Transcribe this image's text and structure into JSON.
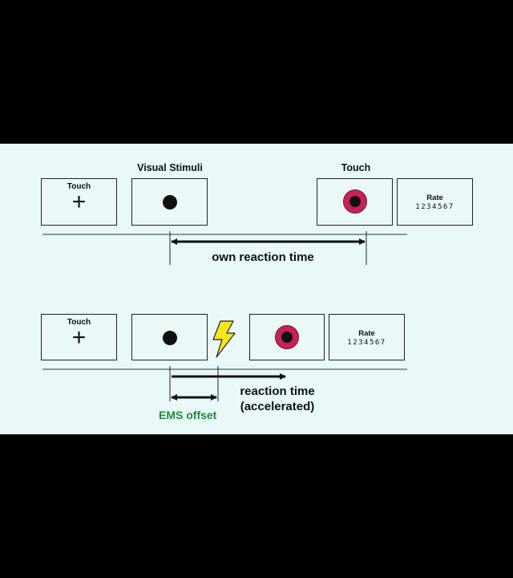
{
  "headers": {
    "visual_stimuli": "Visual Stimuli",
    "touch": "Touch"
  },
  "top_row": {
    "frame1": {
      "label": "Touch",
      "symbol": "+"
    },
    "frame4": {
      "label": "Rate",
      "scale": "1234567"
    }
  },
  "bottom_row": {
    "frame1": {
      "label": "Touch",
      "symbol": "+"
    },
    "frame5": {
      "label": "Rate",
      "scale": "1234567"
    }
  },
  "annotations": {
    "own_reaction_time": "own reaction time",
    "reaction_time_line1": "reaction time",
    "reaction_time_line2": "(accelerated)",
    "ems_offset": "EMS offset"
  },
  "colors": {
    "background": "#000000",
    "panel": "#e9f8f8",
    "target_ring": "#c8205a",
    "ems_text": "#1f8a3a",
    "lightning": "#f5e61e"
  },
  "icons": {
    "fixation": "plus-icon",
    "stimulus": "dot-icon",
    "target": "target-ring-icon",
    "ems": "lightning-bolt-icon"
  }
}
